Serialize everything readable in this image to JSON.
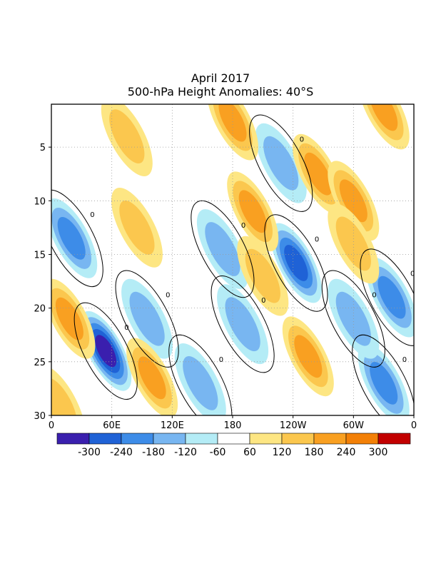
{
  "chart_data": {
    "type": "heatmap",
    "title": "April 2017",
    "subtitle": "500-hPa Height Anomalies: 40°S",
    "x_ticks": [
      "0",
      "60E",
      "120E",
      "180",
      "120W",
      "60W",
      "0"
    ],
    "y_ticks": [
      "5",
      "10",
      "15",
      "20",
      "25",
      "30"
    ],
    "y_range": [
      1,
      30
    ],
    "x_range_deg": [
      0,
      360
    ],
    "grid": "dotted",
    "contour_zero_label": "0",
    "colorbar": {
      "levels": [
        "-300",
        "-240",
        "-180",
        "-120",
        "-60",
        "60",
        "120",
        "180",
        "240",
        "300"
      ],
      "colors": [
        "#3a1fae",
        "#1f62d6",
        "#3d8ce8",
        "#78b6f1",
        "#b4ecf6",
        "#ffffff",
        "#fde683",
        "#fbc74e",
        "#f9a021",
        "#f38007",
        "#c20000"
      ]
    },
    "anomaly_features": [
      {
        "lon": 54,
        "day": 24.0,
        "value": -300,
        "desc": "deep trough"
      },
      {
        "lon": 243,
        "day": 15.8,
        "value": -240
      },
      {
        "lon": 338,
        "day": 19.0,
        "value": -180
      },
      {
        "lon": 330,
        "day": 27.0,
        "value": -200
      },
      {
        "lon": 20,
        "day": 13.5,
        "value": -180
      },
      {
        "lon": 95,
        "day": 21.0,
        "value": -150
      },
      {
        "lon": 170,
        "day": 14.5,
        "value": -140
      },
      {
        "lon": 148,
        "day": 27.0,
        "value": -150
      },
      {
        "lon": 228,
        "day": 6.5,
        "value": -120
      },
      {
        "lon": 300,
        "day": 21.0,
        "value": -150
      },
      {
        "lon": 190,
        "day": 21.5,
        "value": -120
      },
      {
        "lon": 18,
        "day": 21.0,
        "value": 200
      },
      {
        "lon": 100,
        "day": 26.5,
        "value": 200
      },
      {
        "lon": 200,
        "day": 11.0,
        "value": 180
      },
      {
        "lon": 265,
        "day": 7.5,
        "value": 200
      },
      {
        "lon": 300,
        "day": 10.0,
        "value": 220
      },
      {
        "lon": 255,
        "day": 24.5,
        "value": 200
      },
      {
        "lon": 180,
        "day": 2.5,
        "value": 180
      },
      {
        "lon": 330,
        "day": 1.5,
        "value": 180
      },
      {
        "lon": 85,
        "day": 12.5,
        "value": 120
      },
      {
        "lon": 210,
        "day": 17.0,
        "value": 120
      },
      {
        "lon": 8,
        "day": 29.0,
        "value": 160
      },
      {
        "lon": 300,
        "day": 14.0,
        "value": 150
      },
      {
        "lon": 75,
        "day": 4.0,
        "value": 120
      }
    ]
  }
}
